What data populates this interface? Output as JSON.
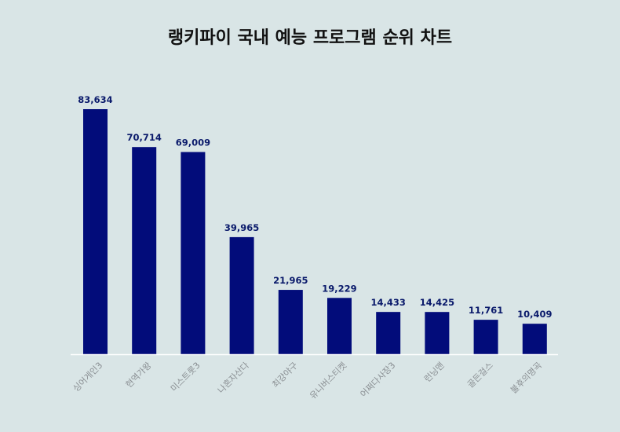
{
  "chart_data": {
    "type": "bar",
    "title": "랭키파이 국내 예능 프로그램 순위 차트",
    "categories": [
      "싱어게인3",
      "현역가왕",
      "미스트롯3",
      "나혼자산다",
      "최강야구",
      "유니버스티켓",
      "어쩌다사장3",
      "런닝맨",
      "골든걸스",
      "불후의명곡"
    ],
    "values": [
      83634,
      70714,
      69009,
      39965,
      21965,
      19229,
      14433,
      14425,
      11761,
      10409
    ],
    "value_labels": [
      "83,634",
      "70,714",
      "69,009",
      "39,965",
      "21,965",
      "19,229",
      "14,433",
      "14,425",
      "11,761",
      "10,409"
    ],
    "ylim": [
      0,
      83634
    ],
    "grid": false,
    "bar_color": "#020c7a",
    "axis_color": "#ffffff"
  }
}
